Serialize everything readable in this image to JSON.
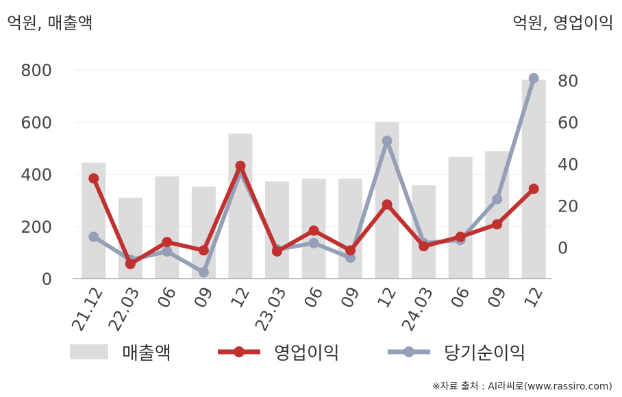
{
  "units": {
    "left": "억원, 매출액",
    "right": "억원, 영업이익"
  },
  "source": "※자료 출처 : AI라씨로(www.rassiro.com)",
  "colors": {
    "bar": "#dcdcdc",
    "operating_profit": "#c0312f",
    "net_income": "#95a0b8",
    "axis": "#aaaaaa",
    "grid": "#e8e8e8"
  },
  "chart_data": {
    "type": "bar",
    "categories": [
      "21.12",
      "22.03",
      "06",
      "09",
      "12",
      "23.03",
      "06",
      "09",
      "12",
      "24.03",
      "06",
      "09",
      "12"
    ],
    "left_axis": {
      "ylim": [
        0,
        800
      ],
      "ticks": [
        0,
        200,
        400,
        600,
        800
      ]
    },
    "right_axis": {
      "ylim": [
        -15,
        85
      ],
      "ticks": [
        0,
        20,
        40,
        60,
        80
      ]
    },
    "series": [
      {
        "name": "매출액",
        "type": "bar",
        "axis": "left",
        "values": [
          444,
          310,
          392,
          352,
          555,
          372,
          383,
          383,
          600,
          358,
          467,
          488,
          762
        ]
      },
      {
        "name": "영업이익",
        "type": "line",
        "axis": "right",
        "values": [
          33,
          -8,
          2.5,
          -1.5,
          39,
          -2,
          8,
          -1.5,
          20.5,
          0.5,
          5,
          11,
          28
        ]
      },
      {
        "name": "당기순이익",
        "type": "line",
        "axis": "right",
        "values": [
          5,
          -6,
          -2,
          -12,
          36,
          -1,
          2,
          -5,
          51,
          2,
          3.5,
          23,
          81
        ]
      }
    ],
    "legend": [
      "매출액",
      "영업이익",
      "당기순이익"
    ],
    "legend_position": "bottom"
  }
}
